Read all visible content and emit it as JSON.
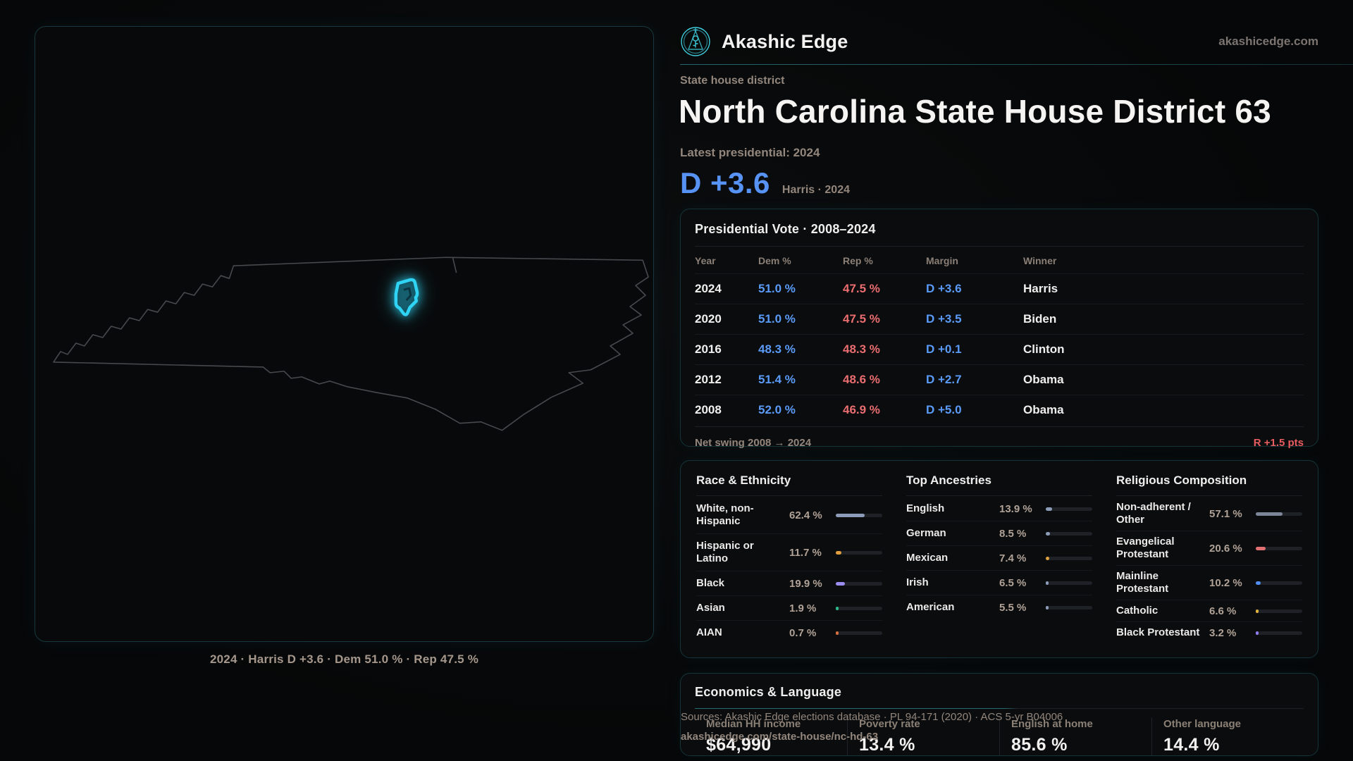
{
  "brand": {
    "name": "Akashic Edge",
    "domain": "akashicedge.com"
  },
  "header": {
    "kicker": "State house district",
    "title": "North Carolina State House District 63",
    "latest_label": "Latest presidential: 2024",
    "margin_big": "D +3.6",
    "margin_context": "Harris · 2024"
  },
  "map": {
    "caption": "2024 · Harris D +3.6 · Dem 51.0 % · Rep 47.5 %",
    "district_color": "#2fd4f4",
    "outline_color": "#46494d"
  },
  "presidential": {
    "title": "Presidential Vote · 2008–2024",
    "columns": {
      "year": "Year",
      "dem": "Dem %",
      "rep": "Rep %",
      "margin": "Margin",
      "winner": "Winner"
    },
    "rows": [
      {
        "year": "2024",
        "dem": "51.0 %",
        "rep": "47.5 %",
        "margin": "D +3.6",
        "winner": "Harris"
      },
      {
        "year": "2020",
        "dem": "51.0 %",
        "rep": "47.5 %",
        "margin": "D +3.5",
        "winner": "Biden"
      },
      {
        "year": "2016",
        "dem": "48.3 %",
        "rep": "48.3 %",
        "margin": "D +0.1",
        "winner": "Clinton"
      },
      {
        "year": "2012",
        "dem": "51.4 %",
        "rep": "48.6 %",
        "margin": "D +2.7",
        "winner": "Obama"
      },
      {
        "year": "2008",
        "dem": "52.0 %",
        "rep": "46.9 %",
        "margin": "D +5.0",
        "winner": "Obama"
      }
    ],
    "net_swing_label": "Net swing 2008 → 2024",
    "net_swing_value": "R +1.5 pts"
  },
  "demographics": {
    "race": {
      "title": "Race & Ethnicity",
      "rows": [
        {
          "label": "White, non-Hispanic",
          "value": "62.4 %",
          "pct": 62.4,
          "color": "#8d9cb8"
        },
        {
          "label": "Hispanic or Latino",
          "value": "11.7 %",
          "pct": 11.7,
          "color": "#e09f3e"
        },
        {
          "label": "Black",
          "value": "19.9 %",
          "pct": 19.9,
          "color": "#9b8cf0"
        },
        {
          "label": "Asian",
          "value": "1.9 %",
          "pct": 1.9,
          "color": "#2db887"
        },
        {
          "label": "AIAN",
          "value": "0.7 %",
          "pct": 0.7,
          "color": "#d4703f"
        }
      ]
    },
    "ancestries": {
      "title": "Top Ancestries",
      "rows": [
        {
          "label": "English",
          "value": "13.9 %",
          "pct": 13.9,
          "color": "#8d9cb8"
        },
        {
          "label": "German",
          "value": "8.5 %",
          "pct": 8.5,
          "color": "#8d9cb8"
        },
        {
          "label": "Mexican",
          "value": "7.4 %",
          "pct": 7.4,
          "color": "#e0a23e"
        },
        {
          "label": "Irish",
          "value": "6.5 %",
          "pct": 6.5,
          "color": "#8d9cb8"
        },
        {
          "label": "American",
          "value": "5.5 %",
          "pct": 5.5,
          "color": "#8d9cb8"
        }
      ]
    },
    "religion": {
      "title": "Religious Composition",
      "rows": [
        {
          "label": "Non-adherent / Other",
          "value": "57.1 %",
          "pct": 57.1,
          "color": "#7d8699"
        },
        {
          "label": "Evangelical Protestant",
          "value": "20.6 %",
          "pct": 20.6,
          "color": "#e07072"
        },
        {
          "label": "Mainline Protestant",
          "value": "10.2 %",
          "pct": 10.2,
          "color": "#4f8ef0"
        },
        {
          "label": "Catholic",
          "value": "6.6 %",
          "pct": 6.6,
          "color": "#e0b23e"
        },
        {
          "label": "Black Protestant",
          "value": "3.2 %",
          "pct": 3.2,
          "color": "#8d7df0"
        }
      ]
    }
  },
  "economics": {
    "title": "Economics & Language",
    "stats": [
      {
        "label": "Median HH income",
        "value": "$64,990"
      },
      {
        "label": "Poverty rate",
        "value": "13.4 %"
      },
      {
        "label": "English at home",
        "value": "85.6 %"
      },
      {
        "label": "Other language",
        "value": "14.4 %"
      }
    ]
  },
  "footer": {
    "sources_line": "Sources: Akashic Edge elections database · PL 94-171 (2020) · ACS 5-yr B04006",
    "permalink": "akashicedge.com/state-house/nc-hd-63"
  }
}
